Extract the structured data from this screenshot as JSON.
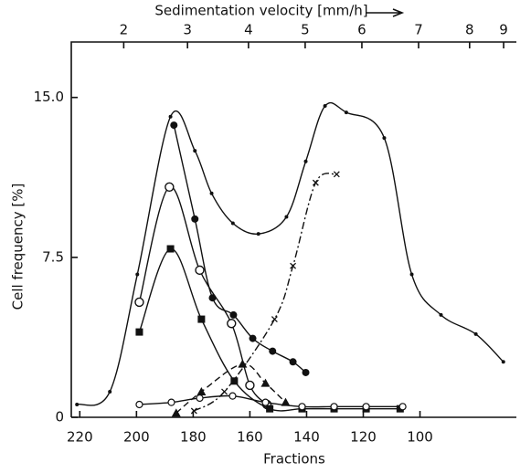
{
  "chart_data": {
    "type": "line",
    "xlabel": "Fractions",
    "ylabel": "Cell frequency [%]",
    "top_axis": {
      "label": "Sedimentation velocity [mm/h]",
      "ticks": [
        2,
        3,
        4,
        5,
        6,
        7,
        8,
        9
      ],
      "tick_fractions": [
        204.5,
        182,
        160.5,
        140.5,
        120.5,
        100.5,
        82.5,
        70.5
      ]
    },
    "xlim": [
      223,
      66
    ],
    "xticks": [
      220,
      200,
      180,
      160,
      140,
      120,
      100
    ],
    "ylim": [
      0,
      17.6
    ],
    "yticks": [
      0,
      7.5,
      {
        "value": 15,
        "label": "15.0"
      }
    ],
    "series": [
      {
        "color": "#111",
        "marker": "dot",
        "linestyle": "solid",
        "x": [
          221,
          209.4,
          199.7,
          188,
          179.4,
          173.5,
          166,
          157,
          147.1,
          140.3,
          133.5,
          126,
          112.6,
          102.9,
          92.6,
          80.3,
          70.6
        ],
        "values": [
          0.6,
          1.2,
          6.7,
          14.1,
          12.5,
          10.5,
          9.1,
          8.6,
          9.4,
          12.0,
          14.6,
          14.3,
          13.1,
          6.7,
          4.8,
          3.9,
          2.6
        ]
      },
      {
        "color": "#111",
        "marker": "filled-circle",
        "linestyle": "solid",
        "x": [
          186.8,
          179.4,
          173.2,
          165.8,
          159,
          152,
          144.8,
          140.3
        ],
        "values": [
          13.7,
          9.3,
          5.6,
          4.8,
          3.7,
          3.1,
          2.6,
          2.1
        ]
      },
      {
        "color": "#111",
        "marker": "open-circle",
        "linestyle": "solid",
        "x": [
          199,
          188.4,
          177.7,
          166.5,
          160,
          154
        ],
        "values": [
          5.4,
          10.8,
          6.9,
          4.4,
          1.5,
          0.6
        ]
      },
      {
        "color": "#111",
        "marker": "filled-square",
        "linestyle": "solid",
        "x": [
          199,
          188,
          177.1,
          165.5,
          153,
          141.6,
          130.3,
          119,
          107
        ],
        "values": [
          4.0,
          7.9,
          4.6,
          1.7,
          0.4,
          0.4,
          0.4,
          0.4,
          0.4
        ]
      },
      {
        "color": "#111",
        "marker": "triangle",
        "linestyle": "dashed",
        "x": [
          186,
          177.1,
          162.6,
          154.5,
          147.4
        ],
        "values": [
          0.2,
          1.2,
          2.5,
          1.6,
          0.7
        ]
      },
      {
        "color": "#111",
        "marker": "cross",
        "linestyle": "dashdot",
        "x": [
          179.7,
          169,
          151.3,
          144.8,
          136.8,
          129.4
        ],
        "values": [
          0.3,
          1.2,
          4.6,
          7.1,
          11.0,
          11.4
        ]
      },
      {
        "color": "#111",
        "marker": "small-open-circle",
        "linestyle": "solid",
        "x": [
          199,
          187.7,
          177.7,
          166.1,
          154.5,
          141.6,
          130.3,
          119,
          106.1
        ],
        "values": [
          0.6,
          0.7,
          0.9,
          1.0,
          0.7,
          0.5,
          0.5,
          0.5,
          0.5
        ]
      }
    ]
  }
}
